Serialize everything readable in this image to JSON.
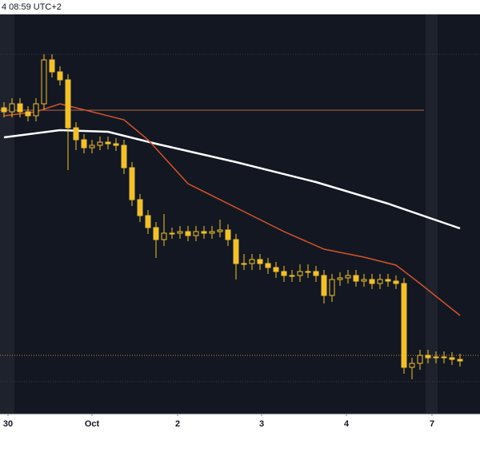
{
  "chart_data": {
    "type": "candlestick",
    "header": "4 08:59 UTC+2",
    "xlim": [
      -0.5,
      59.5
    ],
    "xticks": [
      {
        "value": 0.5,
        "label": "30"
      },
      {
        "value": 11,
        "label": "Oct"
      },
      {
        "value": 21.7,
        "label": "2"
      },
      {
        "value": 32.2,
        "label": "3"
      },
      {
        "value": 42.8,
        "label": "4"
      },
      {
        "value": 53.5,
        "label": "7"
      }
    ],
    "ylim": [
      0,
      100
    ],
    "color": "#f0c030",
    "open": [
      76.6,
      75.6,
      77.6,
      75.6,
      74.6,
      77.6,
      88.6,
      85.6,
      83.6,
      71.6,
      68.6,
      66.6,
      67.2,
      68,
      67.6,
      67.2,
      61.6,
      53.6,
      49.6,
      46.6,
      43.6,
      45.2,
      45.2,
      45.6,
      44.6,
      45.6,
      45.2,
      45.6,
      46,
      43.6,
      37.6,
      37.6,
      38.6,
      37.6,
      36.6,
      35.6,
      34.6,
      34.6,
      35.6,
      35.6,
      34.6,
      29.6,
      33.6,
      34,
      34.6,
      33.2,
      33.6,
      32.6,
      33.6,
      33.2,
      32.6,
      11.6,
      12.6,
      14.6,
      14,
      14.2,
      14,
      13.6
    ],
    "high": [
      78,
      79,
      79,
      77,
      79,
      90,
      90,
      87,
      85,
      73,
      70,
      68.6,
      69.4,
      69.4,
      69,
      68.6,
      63,
      55,
      51,
      48,
      50,
      46.6,
      47,
      47,
      47,
      47,
      47,
      48.6,
      47.4,
      45,
      40,
      40,
      40,
      39,
      38,
      37,
      36,
      37.4,
      37.4,
      37,
      36,
      35,
      35.4,
      36,
      36,
      35,
      35,
      35,
      35,
      34.6,
      34,
      14,
      16,
      16,
      15.6,
      15.6,
      15.4,
      15
    ],
    "low": [
      74.2,
      74.2,
      74.2,
      73.2,
      73.2,
      76.2,
      84.2,
      82.2,
      61,
      66,
      65.2,
      65.2,
      66,
      66.2,
      65.8,
      60,
      52,
      48,
      45,
      39,
      42,
      43.8,
      43.8,
      43.2,
      43.2,
      43.8,
      43.8,
      44.2,
      42,
      33.6,
      36,
      36,
      36,
      35,
      34,
      33,
      33,
      33,
      34,
      33,
      27.6,
      28,
      32,
      32.6,
      31.8,
      31.8,
      31.2,
      31.2,
      31.8,
      31.2,
      10,
      8.6,
      11,
      12.6,
      12.6,
      12.6,
      12.2,
      11.8
    ],
    "close": [
      75.6,
      77.6,
      75.6,
      74.6,
      77.6,
      88.6,
      85.6,
      83.6,
      71.6,
      68.6,
      66.6,
      67.2,
      68,
      67.6,
      67.2,
      61.6,
      53.6,
      49.6,
      46.6,
      43.6,
      45.2,
      45.2,
      45.6,
      44.6,
      45.6,
      45.2,
      45.6,
      46,
      43.6,
      37.6,
      37.6,
      38.6,
      37.6,
      36.6,
      35.6,
      34.6,
      34.6,
      35.6,
      35.6,
      34.6,
      29.6,
      33.6,
      34,
      34.6,
      33.2,
      33.6,
      32.6,
      33.6,
      33.2,
      32.6,
      11.6,
      12.6,
      14.6,
      14,
      14.2,
      14,
      13.6,
      13.2
    ],
    "lines": [
      {
        "color": "#ffffff",
        "x": [
          0,
          7,
          13,
          19,
          29,
          39,
          48,
          57
        ],
        "values": [
          69.2,
          71,
          70.6,
          67.6,
          63,
          58,
          52.6,
          46.4
        ]
      },
      {
        "color": "#d4542a",
        "x": [
          0,
          4,
          7,
          9,
          15,
          18,
          23,
          30,
          35,
          40,
          45,
          49,
          52,
          57
        ],
        "values": [
          74.6,
          75.6,
          77.6,
          76.6,
          73.6,
          68.6,
          57.6,
          50.6,
          45.6,
          41.2,
          39.2,
          37.2,
          32.6,
          24.6
        ]
      }
    ],
    "levels": [
      {
        "value": 76,
        "color": "#b4674c",
        "style": "solid"
      },
      {
        "value": 14.6,
        "color": "#c8862e",
        "style": "dotted"
      },
      {
        "value": 90,
        "color": "#3a3f4c",
        "style": "dotted"
      },
      {
        "value": 8,
        "color": "#3a3f4c",
        "style": "dotted"
      }
    ]
  }
}
